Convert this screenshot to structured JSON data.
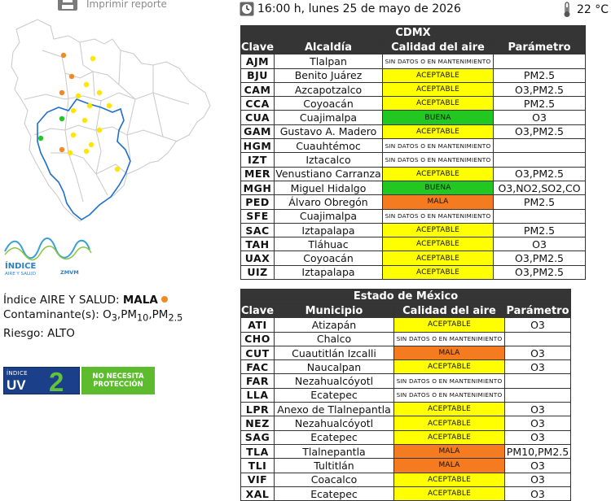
{
  "header": {
    "print_label": "Imprimir reporte",
    "datetime": "16:00 h, lunes 25 de mayo de 2026",
    "temperature": "22 °C"
  },
  "index_logo": {
    "title": "ÍNDICE",
    "subtitle": "AIRE Y SALUD",
    "zone": "ZMVM"
  },
  "air_summary": {
    "index_label": "Índice AIRE Y SALUD:",
    "index_value": "MALA",
    "pollutants_label": "Contaminante(s):",
    "pollutants": [
      {
        "base": "O",
        "sub": "3"
      },
      {
        "base": "PM",
        "sub": "10"
      },
      {
        "base": "PM",
        "sub": "2.5"
      }
    ],
    "risk_label": "Riesgo:",
    "risk_value": "ALTO"
  },
  "uv": {
    "small": "ÍNDICE",
    "big": "UV",
    "value": "2",
    "message_line1": "NO NECESITA",
    "message_line2": "PROTECCIÓN"
  },
  "colors": {
    "buena": "#22c722",
    "aceptable": "#ffff00",
    "mala": "#f47b1f",
    "header": "#353535",
    "map_line": "#1f6fd1"
  },
  "cdmx": {
    "title": "CDMX",
    "headers": [
      "Clave",
      "Alcaldía",
      "Calidad del aire",
      "Parámetro"
    ],
    "rows": [
      {
        "clave": "AJM",
        "name": "Tlalpan",
        "quality": "SIN DATOS O EN MANTENIMIENTO",
        "param": "",
        "level": "none"
      },
      {
        "clave": "BJU",
        "name": "Benito Juárez",
        "quality": "ACEPTABLE",
        "param": "PM2.5",
        "level": "yellow"
      },
      {
        "clave": "CAM",
        "name": "Azcapotzalco",
        "quality": "ACEPTABLE",
        "param": "O3,PM2.5",
        "level": "yellow"
      },
      {
        "clave": "CCA",
        "name": "Coyoacán",
        "quality": "ACEPTABLE",
        "param": "PM2.5",
        "level": "yellow"
      },
      {
        "clave": "CUA",
        "name": "Cuajimalpa",
        "quality": "BUENA",
        "param": "O3",
        "level": "green"
      },
      {
        "clave": "GAM",
        "name": "Gustavo A. Madero",
        "quality": "ACEPTABLE",
        "param": "O3,PM2.5",
        "level": "yellow"
      },
      {
        "clave": "HGM",
        "name": "Cuauhtémoc",
        "quality": "SIN DATOS O EN MANTENIMIENTO",
        "param": "",
        "level": "none"
      },
      {
        "clave": "IZT",
        "name": "Iztacalco",
        "quality": "SIN DATOS O EN MANTENIMIENTO",
        "param": "",
        "level": "none"
      },
      {
        "clave": "MER",
        "name": "Venustiano Carranza",
        "quality": "ACEPTABLE",
        "param": "O3,PM2.5",
        "level": "yellow"
      },
      {
        "clave": "MGH",
        "name": "Miguel Hidalgo",
        "quality": "BUENA",
        "param": "O3,NO2,SO2,CO",
        "level": "green"
      },
      {
        "clave": "PED",
        "name": "Álvaro Obregón",
        "quality": "MALA",
        "param": "PM2.5",
        "level": "orange"
      },
      {
        "clave": "SFE",
        "name": "Cuajimalpa",
        "quality": "SIN DATOS O EN MANTENIMIENTO",
        "param": "",
        "level": "none"
      },
      {
        "clave": "SAC",
        "name": "Iztapalapa",
        "quality": "ACEPTABLE",
        "param": "PM2.5",
        "level": "yellow"
      },
      {
        "clave": "TAH",
        "name": "Tláhuac",
        "quality": "ACEPTABLE",
        "param": "O3",
        "level": "yellow"
      },
      {
        "clave": "UAX",
        "name": "Coyoacán",
        "quality": "ACEPTABLE",
        "param": "O3,PM2.5",
        "level": "yellow"
      },
      {
        "clave": "UIZ",
        "name": "Iztapalapa",
        "quality": "ACEPTABLE",
        "param": "O3,PM2.5",
        "level": "yellow"
      }
    ]
  },
  "edomex": {
    "title": "Estado de México",
    "headers": [
      "Clave",
      "Municipio",
      "Calidad del aire",
      "Parámetro"
    ],
    "rows": [
      {
        "clave": "ATI",
        "name": "Atizapán",
        "quality": "ACEPTABLE",
        "param": "O3",
        "level": "yellow"
      },
      {
        "clave": "CHO",
        "name": "Chalco",
        "quality": "SIN DATOS O EN MANTENIMIENTO",
        "param": "",
        "level": "none"
      },
      {
        "clave": "CUT",
        "name": "Cuautitlán Izcalli",
        "quality": "MALA",
        "param": "O3",
        "level": "orange"
      },
      {
        "clave": "FAC",
        "name": "Naucalpan",
        "quality": "ACEPTABLE",
        "param": "O3",
        "level": "yellow"
      },
      {
        "clave": "FAR",
        "name": "Nezahualcóyotl",
        "quality": "SIN DATOS O EN MANTENIMIENTO",
        "param": "",
        "level": "none"
      },
      {
        "clave": "LLA",
        "name": "Ecatepec",
        "quality": "SIN DATOS O EN MANTENIMIENTO",
        "param": "",
        "level": "none"
      },
      {
        "clave": "LPR",
        "name": "Anexo de Tlalnepantla",
        "quality": "ACEPTABLE",
        "param": "O3",
        "level": "yellow"
      },
      {
        "clave": "NEZ",
        "name": "Nezahualcóyotl",
        "quality": "ACEPTABLE",
        "param": "O3",
        "level": "yellow"
      },
      {
        "clave": "SAG",
        "name": "Ecatepec",
        "quality": "ACEPTABLE",
        "param": "O3",
        "level": "yellow"
      },
      {
        "clave": "TLA",
        "name": "Tlalnepantla",
        "quality": "MALA",
        "param": "PM10,PM2.5",
        "level": "orange"
      },
      {
        "clave": "TLI",
        "name": "Tultitlán",
        "quality": "MALA",
        "param": "O3",
        "level": "orange"
      },
      {
        "clave": "VIF",
        "name": "Coacalco",
        "quality": "ACEPTABLE",
        "param": "O3",
        "level": "yellow"
      },
      {
        "clave": "XAL",
        "name": "Ecatepec",
        "quality": "ACEPTABLE",
        "param": "O3",
        "level": "yellow"
      }
    ]
  }
}
